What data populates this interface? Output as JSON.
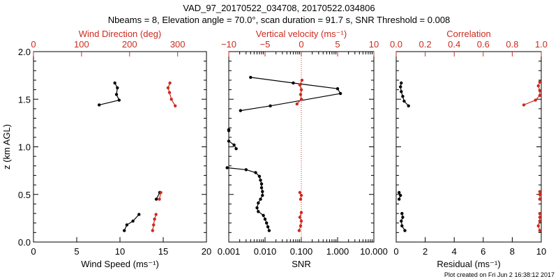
{
  "title_line1": "VAD_97_20170522_034708, 20170522.034806",
  "title_line2": "Nbeams = 8, Elevation angle = 70.0°, scan duration = 91.7 s, SNR Threshold = 0.008",
  "footer": "Plot created on Fri Jun  2 16:38:12 2017",
  "colors": {
    "primary": "#000000",
    "secondary": "#cc2a1e"
  },
  "chart_data": [
    {
      "type": "line",
      "y_label": "z (km AGL)",
      "ylim": [
        0,
        2
      ],
      "y_ticks": [
        "0.0",
        "0.5",
        "1.0",
        "1.5",
        "2.0"
      ],
      "bottom_axis": {
        "label": "Wind Speed (ms⁻¹)",
        "range": [
          0,
          20
        ],
        "ticks": [
          "0",
          "5",
          "10",
          "15",
          "20"
        ]
      },
      "top_axis": {
        "label": "Wind Direction (deg)",
        "range": [
          0,
          360
        ],
        "ticks": [
          "0",
          "100",
          "200",
          "300"
        ]
      },
      "series": [
        {
          "axis": "bottom",
          "color": "#000000",
          "marker": "circle",
          "segments": [
            [
              [
                10.5,
                0.12
              ],
              [
                10.8,
                0.18
              ],
              [
                11.5,
                0.22
              ],
              [
                12.2,
                0.29
              ]
            ],
            [
              [
                14.2,
                0.45
              ],
              [
                14.6,
                0.52
              ]
            ],
            [
              [
                7.6,
                1.44
              ],
              [
                9.9,
                1.49
              ],
              [
                9.6,
                1.55
              ],
              [
                9.7,
                1.62
              ],
              [
                9.4,
                1.67
              ]
            ]
          ]
        },
        {
          "axis": "top",
          "color": "#cc2a1e",
          "marker": "circle",
          "segments": [
            [
              [
                248,
                0.12
              ],
              [
                250,
                0.18
              ],
              [
                252,
                0.24
              ],
              [
                255,
                0.29
              ]
            ],
            [
              [
                262,
                0.45
              ],
              [
                265,
                0.52
              ]
            ],
            [
              [
                295,
                1.43
              ],
              [
                287,
                1.5
              ],
              [
                283,
                1.57
              ],
              [
                280,
                1.62
              ],
              [
                284,
                1.67
              ]
            ]
          ]
        }
      ]
    },
    {
      "type": "line",
      "ylim": [
        0,
        2
      ],
      "bottom_axis": {
        "label": "SNR",
        "scale": "log",
        "range": [
          0.001,
          10
        ],
        "ticks": [
          "0.001",
          "0.010",
          "0.100",
          "1.000",
          "10.000"
        ]
      },
      "top_axis": {
        "label": "Vertical velocity (ms⁻¹)",
        "range": [
          -10,
          10
        ],
        "ticks": [
          "−10",
          "−5",
          "0",
          "5",
          "10"
        ]
      },
      "reference_line": {
        "axis": "top",
        "value": 0,
        "style": "dotted",
        "color": "#cc2a1e"
      },
      "series": [
        {
          "axis": "bottom",
          "color": "#000000",
          "marker": "circle",
          "segments": [
            [
              [
                0.013,
                0.12
              ],
              [
                0.012,
                0.16
              ],
              [
                0.011,
                0.2
              ],
              [
                0.01,
                0.24
              ],
              [
                0.009,
                0.28
              ],
              [
                0.0065,
                0.32
              ],
              [
                0.006,
                0.36
              ],
              [
                0.0065,
                0.41
              ],
              [
                0.0075,
                0.45
              ],
              [
                0.0085,
                0.49
              ],
              [
                0.0085,
                0.53
              ],
              [
                0.008,
                0.57
              ],
              [
                0.008,
                0.61
              ],
              [
                0.0075,
                0.65
              ],
              [
                0.007,
                0.69
              ],
              [
                0.0055,
                0.73
              ],
              [
                0.003,
                0.76
              ],
              [
                0.0009,
                0.78
              ]
            ],
            [
              [
                0.0016,
                0.98
              ],
              [
                0.0014,
                1.02
              ],
              [
                0.001,
                1.06
              ]
            ],
            [
              [
                0.001,
                1.18
              ],
              [
                0.001,
                1.17
              ]
            ],
            [
              [
                0.0021,
                1.38
              ],
              [
                0.014,
                1.43
              ],
              [
                1.2,
                1.56
              ],
              [
                1.0,
                1.61
              ],
              [
                0.06,
                1.67
              ],
              [
                0.004,
                1.73
              ]
            ]
          ]
        },
        {
          "axis": "top",
          "color": "#cc2a1e",
          "marker": "circle",
          "segments": [
            [
              [
                -0.3,
                0.12
              ],
              [
                -0.1,
                0.17
              ],
              [
                0.0,
                0.22
              ],
              [
                -0.2,
                0.26
              ],
              [
                0.0,
                0.31
              ]
            ],
            [
              [
                -0.1,
                0.45
              ],
              [
                0.0,
                0.49
              ],
              [
                -0.2,
                0.52
              ]
            ],
            [
              [
                -0.6,
                1.45
              ],
              [
                0.0,
                1.5
              ],
              [
                -0.1,
                1.55
              ],
              [
                0.0,
                1.6
              ],
              [
                -0.2,
                1.65
              ],
              [
                0.1,
                1.7
              ]
            ]
          ]
        }
      ]
    },
    {
      "type": "line",
      "ylim": [
        0,
        2
      ],
      "bottom_axis": {
        "label": "Residual (ms⁻¹)",
        "range": [
          0,
          10
        ],
        "ticks": [
          "0",
          "2",
          "4",
          "6",
          "8",
          "10"
        ]
      },
      "top_axis": {
        "label": "Correlation",
        "range": [
          0.0,
          1.0
        ],
        "ticks": [
          "0.0",
          "0.2",
          "0.4",
          "0.6",
          "0.8",
          "1.0"
        ]
      },
      "series": [
        {
          "axis": "bottom",
          "color": "#000000",
          "marker": "circle",
          "segments": [
            [
              [
                0.6,
                0.12
              ],
              [
                0.4,
                0.17
              ],
              [
                0.35,
                0.22
              ],
              [
                0.45,
                0.26
              ],
              [
                0.4,
                0.3
              ]
            ],
            [
              [
                0.2,
                0.45
              ],
              [
                0.3,
                0.49
              ],
              [
                0.2,
                0.52
              ]
            ],
            [
              [
                0.85,
                1.43
              ],
              [
                0.55,
                1.48
              ],
              [
                0.45,
                1.53
              ],
              [
                0.35,
                1.58
              ],
              [
                0.3,
                1.63
              ],
              [
                0.35,
                1.67
              ]
            ]
          ]
        },
        {
          "axis": "top",
          "color": "#cc2a1e",
          "marker": "circle",
          "segments": [
            [
              [
                0.99,
                0.12
              ],
              [
                0.98,
                0.17
              ],
              [
                0.99,
                0.22
              ],
              [
                0.99,
                0.26
              ],
              [
                0.99,
                0.3
              ]
            ],
            [
              [
                0.99,
                0.45
              ],
              [
                0.99,
                0.5
              ],
              [
                0.99,
                0.53
              ]
            ],
            [
              [
                0.88,
                1.44
              ],
              [
                0.96,
                1.49
              ],
              [
                0.99,
                1.54
              ],
              [
                0.99,
                1.59
              ],
              [
                0.98,
                1.64
              ],
              [
                0.99,
                1.68
              ]
            ]
          ]
        }
      ]
    }
  ]
}
